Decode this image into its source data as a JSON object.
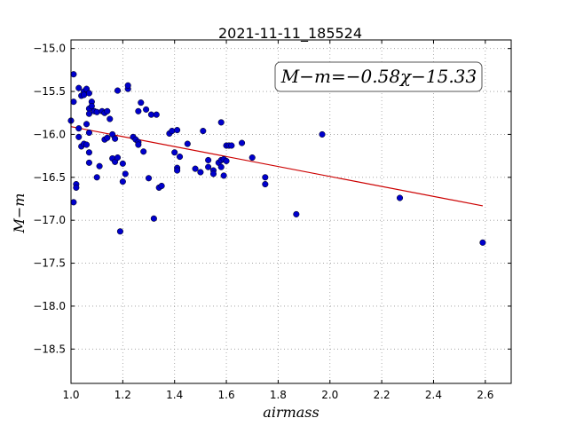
{
  "chart_data": {
    "type": "scatter",
    "title": "2021-11-11_185524",
    "xlabel": "airmass",
    "ylabel": "M−m",
    "xlim": [
      1.0,
      2.7
    ],
    "ylim": [
      -18.9,
      -14.9
    ],
    "y_inverted": true,
    "grid": true,
    "xticks": [
      "1.0",
      "1.2",
      "1.4",
      "1.6",
      "1.8",
      "2.0",
      "2.2",
      "2.4",
      "2.6"
    ],
    "yticks": [
      "−15.0",
      "−15.5",
      "−16.0",
      "−16.5",
      "−17.0",
      "−17.5",
      "−18.0",
      "−18.5"
    ],
    "annotation": "M−m=−0.58χ−15.33",
    "fit": {
      "slope": -0.58,
      "intercept": -15.33,
      "x_range": [
        1.0,
        2.59
      ],
      "color": "#cc0000"
    },
    "point_color": "#0000cc",
    "points": [
      [
        1.0,
        -15.84
      ],
      [
        1.01,
        -15.3
      ],
      [
        1.01,
        -15.62
      ],
      [
        1.01,
        -16.79
      ],
      [
        1.02,
        -16.58
      ],
      [
        1.02,
        -16.62
      ],
      [
        1.03,
        -15.46
      ],
      [
        1.03,
        -15.93
      ],
      [
        1.03,
        -16.03
      ],
      [
        1.04,
        -15.55
      ],
      [
        1.04,
        -16.14
      ],
      [
        1.05,
        -15.5
      ],
      [
        1.05,
        -15.54
      ],
      [
        1.05,
        -16.11
      ],
      [
        1.06,
        -15.47
      ],
      [
        1.06,
        -15.88
      ],
      [
        1.06,
        -16.12
      ],
      [
        1.07,
        -15.52
      ],
      [
        1.07,
        -15.7
      ],
      [
        1.07,
        -15.76
      ],
      [
        1.07,
        -15.98
      ],
      [
        1.07,
        -16.21
      ],
      [
        1.07,
        -16.33
      ],
      [
        1.08,
        -15.62
      ],
      [
        1.08,
        -15.67
      ],
      [
        1.09,
        -15.73
      ],
      [
        1.1,
        -15.74
      ],
      [
        1.1,
        -16.5
      ],
      [
        1.11,
        -16.37
      ],
      [
        1.12,
        -15.73
      ],
      [
        1.13,
        -15.75
      ],
      [
        1.13,
        -16.06
      ],
      [
        1.14,
        -15.73
      ],
      [
        1.14,
        -16.04
      ],
      [
        1.15,
        -15.82
      ],
      [
        1.16,
        -16.28
      ],
      [
        1.16,
        -16.0
      ],
      [
        1.17,
        -16.32
      ],
      [
        1.17,
        -16.05
      ],
      [
        1.18,
        -15.49
      ],
      [
        1.18,
        -16.27
      ],
      [
        1.19,
        -17.13
      ],
      [
        1.2,
        -16.34
      ],
      [
        1.2,
        -16.55
      ],
      [
        1.21,
        -16.46
      ],
      [
        1.22,
        -15.47
      ],
      [
        1.22,
        -15.43
      ],
      [
        1.24,
        -16.03
      ],
      [
        1.25,
        -16.06
      ],
      [
        1.26,
        -16.09
      ],
      [
        1.26,
        -16.12
      ],
      [
        1.26,
        -15.73
      ],
      [
        1.27,
        -15.63
      ],
      [
        1.28,
        -16.2
      ],
      [
        1.29,
        -15.71
      ],
      [
        1.3,
        -16.51
      ],
      [
        1.31,
        -15.77
      ],
      [
        1.32,
        -16.98
      ],
      [
        1.33,
        -15.77
      ],
      [
        1.34,
        -16.62
      ],
      [
        1.35,
        -16.6
      ],
      [
        1.38,
        -15.99
      ],
      [
        1.39,
        -15.96
      ],
      [
        1.4,
        -16.21
      ],
      [
        1.41,
        -16.39
      ],
      [
        1.41,
        -15.95
      ],
      [
        1.41,
        -16.42
      ],
      [
        1.42,
        -16.26
      ],
      [
        1.45,
        -16.11
      ],
      [
        1.48,
        -16.4
      ],
      [
        1.5,
        -16.44
      ],
      [
        1.51,
        -15.96
      ],
      [
        1.53,
        -16.3
      ],
      [
        1.53,
        -16.38
      ],
      [
        1.55,
        -16.42
      ],
      [
        1.55,
        -16.46
      ],
      [
        1.57,
        -16.33
      ],
      [
        1.58,
        -16.3
      ],
      [
        1.58,
        -16.38
      ],
      [
        1.58,
        -15.86
      ],
      [
        1.59,
        -16.29
      ],
      [
        1.59,
        -16.48
      ],
      [
        1.6,
        -16.31
      ],
      [
        1.6,
        -16.13
      ],
      [
        1.61,
        -16.13
      ],
      [
        1.62,
        -16.13
      ],
      [
        1.66,
        -16.1
      ],
      [
        1.7,
        -16.27
      ],
      [
        1.75,
        -16.5
      ],
      [
        1.75,
        -16.58
      ],
      [
        1.87,
        -16.93
      ],
      [
        1.97,
        -16.0
      ],
      [
        2.27,
        -16.74
      ],
      [
        2.59,
        -17.26
      ]
    ]
  }
}
